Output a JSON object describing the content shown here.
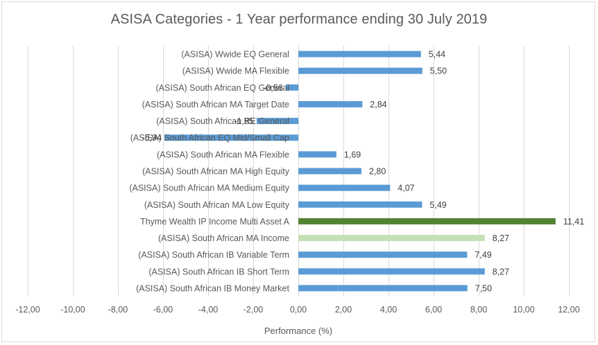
{
  "chart_data": {
    "type": "bar",
    "orientation": "horizontal",
    "title": "ASISA Categories - 1 Year performance ending 30 July 2019",
    "xlabel": "Performance (%)",
    "ylabel": "",
    "xlim": [
      -12,
      12
    ],
    "x_ticks": [
      -12,
      -10,
      -8,
      -6,
      -4,
      -2,
      0,
      2,
      4,
      6,
      8,
      10,
      12
    ],
    "x_tick_labels": [
      "-12,00",
      "-10,00",
      "-8,00",
      "-6,00",
      "-4,00",
      "-2,00",
      "0,00",
      "2,00",
      "4,00",
      "6,00",
      "8,00",
      "10,00",
      "12,00"
    ],
    "grid": true,
    "legend": "none",
    "categories": [
      "(ASISA) Wwide EQ General",
      "(ASISA) Wwide MA Flexible",
      "(ASISA) South African EQ General",
      "(ASISA) South African MA Target Date",
      "(ASISA) South African RE General",
      "(ASISA) South African EQ Mid/Small Cap",
      "(ASISA) South African MA Flexible",
      "(ASISA) South African MA High Equity",
      "(ASISA) South African MA Medium Equity",
      "(ASISA) South African MA Low Equity",
      "Thyme Wealth IP Income Multi Asset A",
      "(ASISA) South African MA Income",
      "(ASISA) South African IB Variable Term",
      "(ASISA) South African IB Short Term",
      "(ASISA) South African IB Money Market"
    ],
    "values": [
      5.44,
      5.5,
      -0.56,
      2.84,
      -1.85,
      -5.94,
      1.69,
      2.8,
      4.07,
      5.49,
      11.41,
      8.27,
      7.49,
      8.27,
      7.5
    ],
    "value_labels": [
      "5,44",
      "5,50",
      "-0,56",
      "2,84",
      "-1,85",
      "-5,94",
      "1,69",
      "2,80",
      "4,07",
      "5,49",
      "11,41",
      "8,27",
      "7,49",
      "8,27",
      "7,50"
    ],
    "bar_colors": [
      "#5b9bd5",
      "#5b9bd5",
      "#5b9bd5",
      "#5b9bd5",
      "#5b9bd5",
      "#5b9bd5",
      "#5b9bd5",
      "#5b9bd5",
      "#5b9bd5",
      "#5b9bd5",
      "#548235",
      "#c5e0b4",
      "#5b9bd5",
      "#5b9bd5",
      "#5b9bd5"
    ]
  },
  "colors": {
    "default_bar": "#5b9bd5",
    "highlight_fund": "#548235",
    "benchmark": "#c5e0b4",
    "gridline": "#d9d9d9",
    "text": "#595959"
  }
}
